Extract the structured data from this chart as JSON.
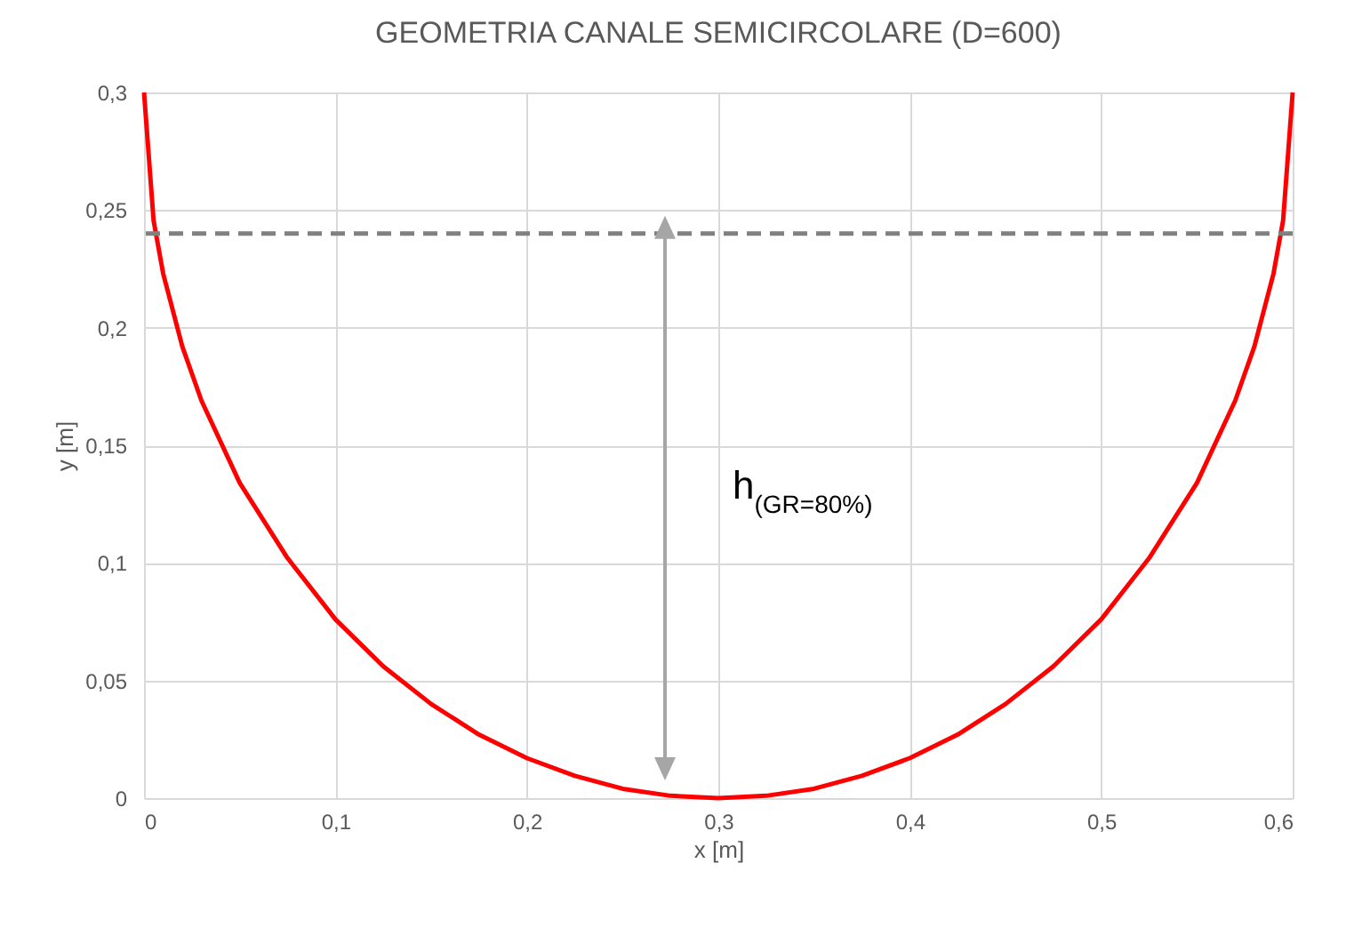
{
  "chart_data": {
    "type": "line",
    "title": "GEOMETRIA CANALE SEMICIRCOLARE (D=600)",
    "xlabel": "x [m]",
    "ylabel": "y [m]",
    "x": [
      0,
      0.005,
      0.01,
      0.02,
      0.03,
      0.05,
      0.075,
      0.1,
      0.125,
      0.15,
      0.175,
      0.2,
      0.225,
      0.25,
      0.275,
      0.3,
      0.325,
      0.35,
      0.375,
      0.4,
      0.425,
      0.45,
      0.475,
      0.5,
      0.525,
      0.55,
      0.57,
      0.58,
      0.59,
      0.595,
      0.6
    ],
    "series": [
      {
        "color": "#ff0000",
        "values": [
          0.3,
          0.2455,
          0.223,
          0.192,
          0.169,
          0.134,
          0.102,
          0.076,
          0.056,
          0.04,
          0.027,
          0.017,
          0.0095,
          0.004,
          0.001,
          0,
          0.001,
          0.004,
          0.0095,
          0.017,
          0.027,
          0.04,
          0.056,
          0.076,
          0.102,
          0.134,
          0.169,
          0.192,
          0.223,
          0.2455,
          0.3
        ]
      }
    ],
    "xlim": [
      0,
      0.6
    ],
    "ylim": [
      0,
      0.3
    ],
    "xticks": [
      0,
      {
        "value": 0.1,
        "label": "0,1"
      },
      {
        "value": 0.2,
        "label": "0,2"
      },
      {
        "value": 0.3,
        "label": "0,3"
      },
      {
        "value": 0.4,
        "label": "0,4"
      },
      {
        "value": 0.5,
        "label": "0,5"
      },
      {
        "value": 0.6,
        "label": "0,6"
      }
    ],
    "yticks": [
      0,
      {
        "value": 0.05,
        "label": "0,05"
      },
      {
        "value": 0.1,
        "label": "0,1"
      },
      {
        "value": 0.15,
        "label": "0,15"
      },
      {
        "value": 0.2,
        "label": "0,2"
      },
      {
        "value": 0.25,
        "label": "0,25"
      },
      {
        "value": 0.3,
        "label": "0,3"
      }
    ],
    "ref_lines": [
      {
        "axis": "y",
        "value": 0.24,
        "color": "#808080",
        "line_style": "dashed"
      }
    ],
    "annotations": [
      "h$_{(GR=80%)}$"
    ],
    "grid": true,
    "marker": "none",
    "line_style": "solid"
  }
}
